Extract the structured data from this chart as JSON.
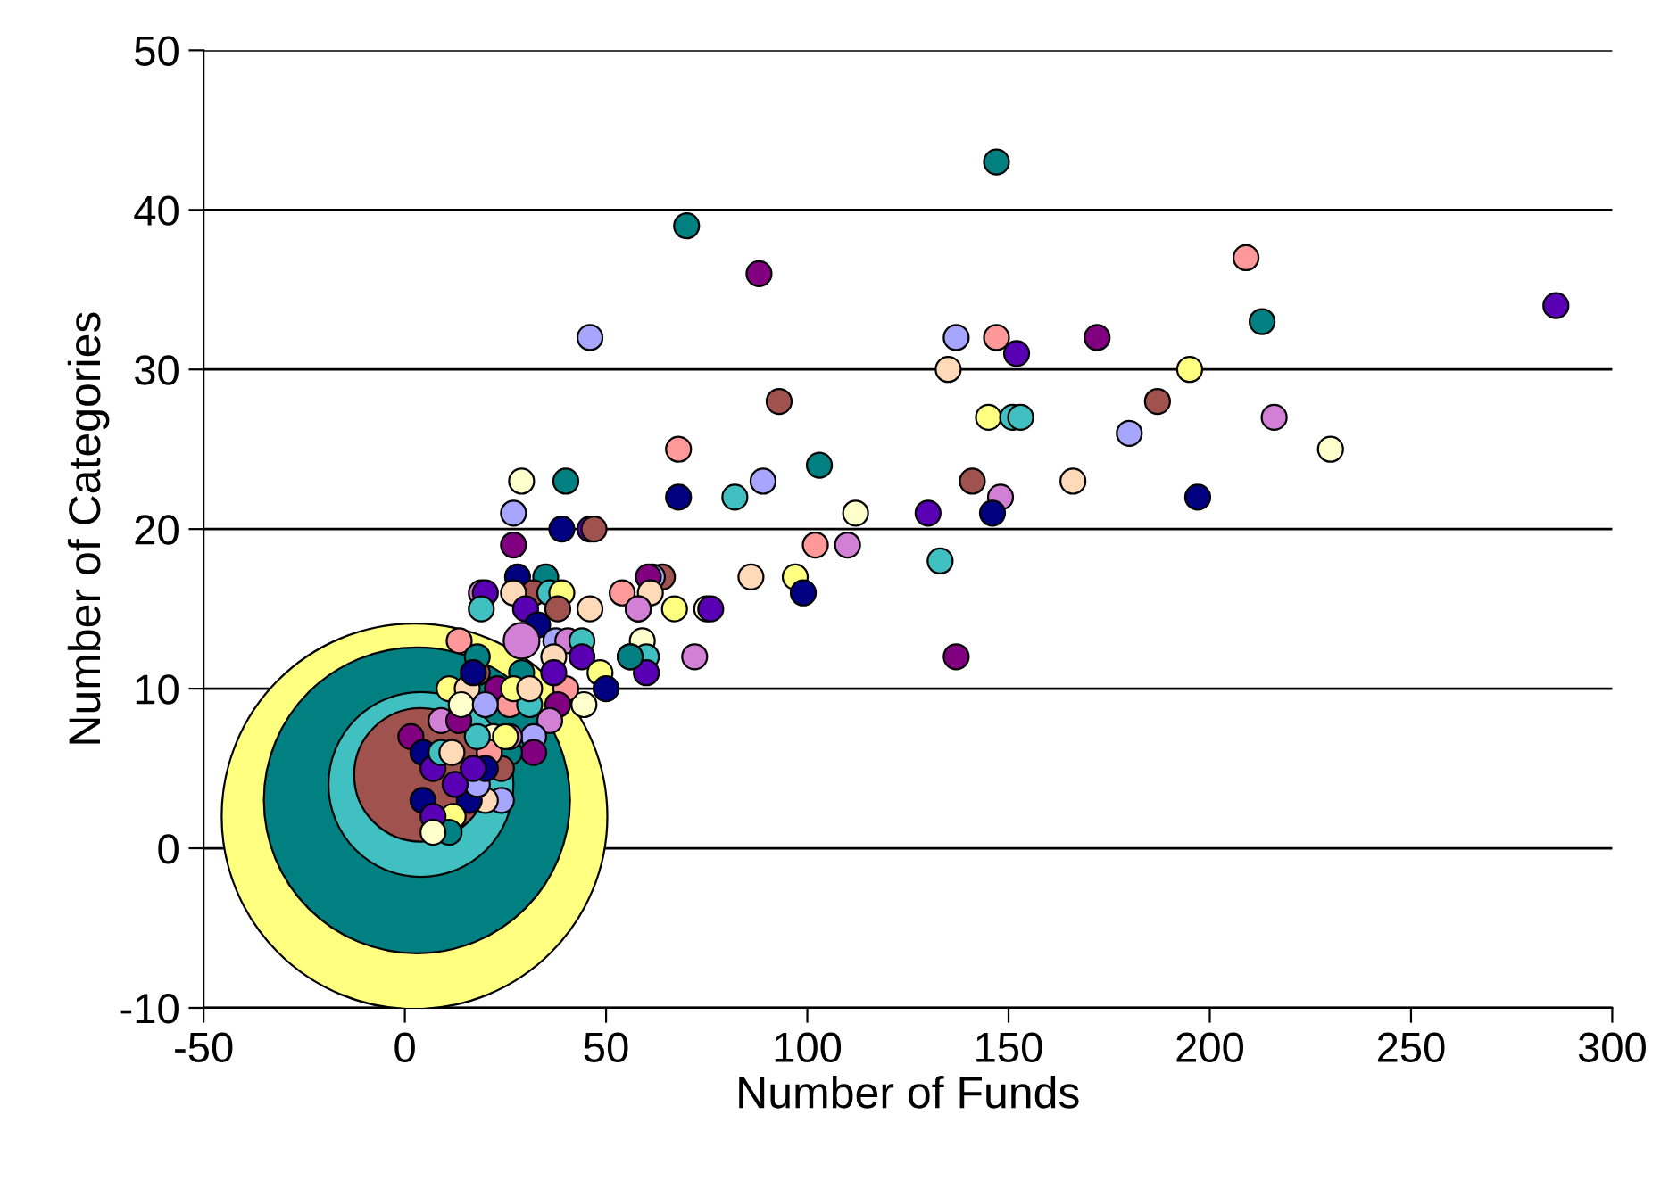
{
  "chart_data": {
    "type": "bubble",
    "xlabel": "Number of Funds",
    "ylabel": "Number of Categories",
    "xlim": [
      -50,
      300
    ],
    "xticks": [
      -50,
      0,
      50,
      100,
      150,
      200,
      250,
      300
    ],
    "ylim": [
      -10,
      50
    ],
    "yticks": [
      -10,
      0,
      10,
      20,
      30,
      40,
      50
    ],
    "grid": "y",
    "legend": false,
    "series": [
      {
        "x": [
          2.4,
          3,
          4,
          4,
          147,
          70,
          88,
          46,
          209,
          213,
          286,
          172,
          147,
          137,
          152,
          135,
          195,
          187,
          93,
          180,
          216,
          230,
          145,
          151,
          153,
          68,
          103,
          89,
          82,
          68,
          141,
          148,
          146,
          130,
          112,
          166,
          197,
          102,
          110,
          133,
          86,
          97,
          99,
          137,
          72,
          64,
          61.5,
          60.5,
          61,
          58,
          67,
          75,
          76,
          59,
          56,
          60,
          60,
          29,
          40,
          27,
          39,
          46,
          47,
          27,
          28,
          35,
          19,
          20,
          19,
          32,
          27,
          36,
          39,
          38,
          30,
          33,
          46,
          54,
          58,
          29,
          37.5,
          40.5,
          44,
          56,
          44,
          37,
          48.5,
          50,
          44.5,
          40,
          38,
          13.5,
          36,
          32,
          32,
          26,
          24,
          24,
          20,
          16,
          12,
          11,
          18,
          12.5,
          4.5,
          7,
          7,
          29,
          37,
          18,
          18,
          23,
          26,
          31,
          22,
          21,
          20,
          17,
          26,
          18,
          11,
          15.5,
          17,
          1.5,
          4.5,
          7,
          9,
          9,
          11.7,
          13.4,
          14,
          20,
          25,
          27,
          31
        ],
        "values": [
          2,
          3,
          4,
          4.6,
          43,
          39,
          36,
          32,
          37,
          33,
          34,
          32,
          32,
          32,
          31,
          30,
          30,
          28,
          28,
          26,
          27,
          25,
          27,
          27,
          27,
          25,
          24,
          23,
          22,
          22,
          23,
          22,
          21,
          21,
          21,
          23,
          22,
          19,
          19,
          18,
          17,
          17,
          16,
          12,
          12,
          17,
          17,
          17,
          16,
          15,
          15,
          15,
          15,
          13,
          12,
          12,
          11,
          23,
          23,
          21,
          20,
          20,
          20,
          19,
          17,
          17,
          16,
          16,
          15,
          16,
          16,
          16,
          16,
          15,
          15,
          14,
          15,
          16,
          15,
          13,
          13,
          13,
          13,
          12,
          12,
          12,
          11,
          10,
          9,
          10,
          9,
          13,
          8,
          7,
          6,
          6,
          5,
          3,
          3,
          3,
          2,
          1,
          4,
          4,
          3,
          2,
          1,
          11,
          11,
          11,
          12,
          10,
          9,
          9,
          7,
          6,
          5,
          5,
          7,
          7,
          10,
          10,
          11,
          7,
          6,
          5,
          8,
          6,
          6,
          8,
          9,
          9,
          7,
          10,
          10
        ],
        "sizes": [
          1,
          0.63,
          0.23,
          0.12,
          0.0042,
          0.0042,
          0.0042,
          0.0042,
          0.0042,
          0.0042,
          0.0042,
          0.0042,
          0.0042,
          0.0042,
          0.0042,
          0.0042,
          0.0042,
          0.0042,
          0.0042,
          0.0042,
          0.0042,
          0.0042,
          0.0042,
          0.0042,
          0.0042,
          0.0042,
          0.0042,
          0.0042,
          0.0042,
          0.0042,
          0.0042,
          0.0042,
          0.0042,
          0.0042,
          0.0042,
          0.0042,
          0.0042,
          0.0042,
          0.0042,
          0.0042,
          0.0042,
          0.0042,
          0.0042,
          0.0042,
          0.0042,
          0.0042,
          0.0042,
          0.0042,
          0.0042,
          0.0042,
          0.0042,
          0.0042,
          0.0042,
          0.0042,
          0.0042,
          0.0042,
          0.0042,
          0.0042,
          0.0042,
          0.0042,
          0.0042,
          0.0042,
          0.0042,
          0.0042,
          0.0042,
          0.0042,
          0.0042,
          0.0042,
          0.0042,
          0.0042,
          0.0042,
          0.0042,
          0.0042,
          0.0042,
          0.0042,
          0.0042,
          0.0042,
          0.0042,
          0.0042,
          0.0086,
          0.0042,
          0.0042,
          0.0042,
          0.0042,
          0.0042,
          0.0042,
          0.0042,
          0.0042,
          0.0042,
          0.0042,
          0.0042,
          0.0042,
          0.0042,
          0.0042,
          0.0042,
          0.0042,
          0.0042,
          0.0042,
          0.0042,
          0.0042,
          0.0042,
          0.0042,
          0.0042,
          0.0042,
          0.0042,
          0.0042,
          0.0042,
          0.0042,
          0.0042,
          0.0042,
          0.0042,
          0.0042,
          0.0042,
          0.0042,
          0.0042,
          0.0042,
          0.0042,
          0.0042,
          0.0042,
          0.0042,
          0.0042,
          0.0042,
          0.0042,
          0.0042,
          0.0042,
          0.0042,
          0.0042,
          0.0042,
          0.0042,
          0.0042,
          0.0042,
          0.0042,
          0.0042,
          0.0042,
          0.0042
        ],
        "colors": [
          "#ffff80",
          "#008080",
          "#40c0c0",
          "#a0524f",
          "#008080",
          "#008080",
          "#800080",
          "#a6a6ff",
          "#ff9999",
          "#008080",
          "#5a00b4",
          "#800080",
          "#ff9999",
          "#a6a6ff",
          "#5a00b4",
          "#ffdab9",
          "#ffff80",
          "#a0524f",
          "#a0524f",
          "#a6a6ff",
          "#d27fd6",
          "#ffffcc",
          "#ffff80",
          "#40c0c0",
          "#40c0c0",
          "#ff9999",
          "#008080",
          "#a6a6ff",
          "#40c0c0",
          "#000080",
          "#a0524f",
          "#d27fd6",
          "#000080",
          "#5a00b4",
          "#ffffcc",
          "#ffdab9",
          "#000080",
          "#ff9999",
          "#d27fd6",
          "#40c0c0",
          "#ffdab9",
          "#ffff80",
          "#000080",
          "#800080",
          "#d27fd6",
          "#a0524f",
          "#a6a6ff",
          "#800080",
          "#ffdab9",
          "#d27fd6",
          "#ffff80",
          "#ffffcc",
          "#5a00b4",
          "#ffffcc",
          "#008080",
          "#40c0c0",
          "#5a00b4",
          "#ffffcc",
          "#008080",
          "#a6a6ff",
          "#000080",
          "#5a00b4",
          "#a0524f",
          "#800080",
          "#000080",
          "#008080",
          "#d27fd6",
          "#5a00b4",
          "#40c0c0",
          "#a0524f",
          "#ffdab9",
          "#40c0c0",
          "#ffff80",
          "#a0524f",
          "#5a00b4",
          "#000080",
          "#ffdab9",
          "#ff9999",
          "#d27fd6",
          "#d27fd6",
          "#a6a6ff",
          "#d27fd6",
          "#40c0c0",
          "#008080",
          "#5a00b4",
          "#ffdab9",
          "#ffff80",
          "#000080",
          "#ffffcc",
          "#ff9999",
          "#800080",
          "#ff9999",
          "#d27fd6",
          "#a6a6ff",
          "#800080",
          "#008080",
          "#a0524f",
          "#a6a6ff",
          "#ffdab9",
          "#000080",
          "#ffff80",
          "#008080",
          "#a6a6ff",
          "#5a00b4",
          "#000080",
          "#5a00b4",
          "#ffffcc",
          "#008080",
          "#5a00b4",
          "#a0524f",
          "#008080",
          "#800080",
          "#ff9999",
          "#40c0c0",
          "#ffffcc",
          "#ff9999",
          "#000080",
          "#5a00b4",
          "#d27fd6",
          "#40c0c0",
          "#ffff80",
          "#ffdab9",
          "#000080",
          "#800080",
          "#000080",
          "#5a00b4",
          "#d27fd6",
          "#40c0c0",
          "#ffdab9",
          "#800080",
          "#ffffcc",
          "#a6a6ff",
          "#ffff80",
          "#ffff80",
          "#ffdab9"
        ]
      }
    ]
  }
}
